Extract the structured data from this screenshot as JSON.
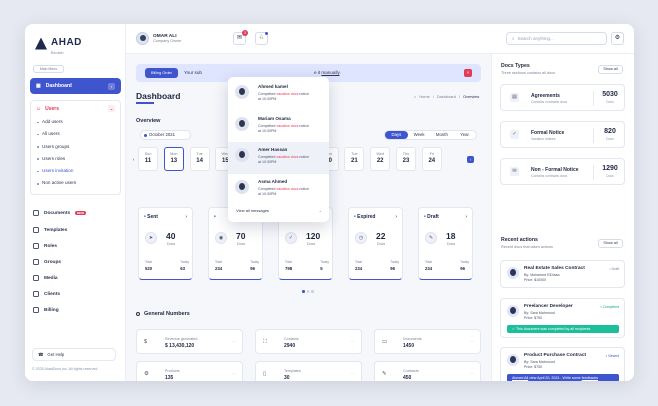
{
  "brand": {
    "name": "AHAD",
    "tagline": "Broker"
  },
  "sidebar": {
    "menu_label": "Main Menu",
    "dashboard": "Dashboard",
    "users": {
      "label": "Users",
      "items": [
        "Add users",
        "All users",
        "Users groups",
        "Users roles",
        "Users invitation",
        "Non active users"
      ]
    },
    "items": [
      {
        "label": "Documents",
        "badge": "NEW"
      },
      {
        "label": "Templates"
      },
      {
        "label": "Roles"
      },
      {
        "label": "Groups"
      },
      {
        "label": "Media"
      },
      {
        "label": "Clients"
      },
      {
        "label": "Billing"
      }
    ],
    "help": "Get Help",
    "copyright": "© 2025 AhadDocs Inc. All rights reserved."
  },
  "topbar": {
    "user_name": "OMAR ALI",
    "user_role": "Company Owner",
    "mail_badge": "3",
    "search_placeholder": "Search anything..."
  },
  "banner": {
    "button": "Billing Order",
    "text_left": "Your sub",
    "text_right": "e it ",
    "link": "manually",
    "tail": ".",
    "close": "×"
  },
  "page": {
    "title": "Dashboard",
    "breadcrumb": [
      "Home",
      "/",
      "Dashboard",
      "/",
      "Overview"
    ],
    "overview_label": "Overview"
  },
  "date_pill": "October 2021",
  "periods": [
    "Days",
    "Week",
    "Month",
    "Year"
  ],
  "days": [
    {
      "name": "Sun",
      "num": "11"
    },
    {
      "name": "Mon",
      "num": "13"
    },
    {
      "name": "Tue",
      "num": "14"
    },
    {
      "name": "Wed",
      "num": "15"
    },
    {
      "name": "Thu",
      "num": "16"
    },
    {
      "name": "Fri",
      "num": "17"
    },
    {
      "name": "Sat",
      "num": "18"
    },
    {
      "name": "Mon",
      "num": "20"
    },
    {
      "name": "Tue",
      "num": "21"
    },
    {
      "name": "Wed",
      "num": "22"
    },
    {
      "name": "Thu",
      "num": "23"
    },
    {
      "name": "Fri",
      "num": "24"
    }
  ],
  "status_cards": [
    {
      "label": "Sent",
      "value": "40",
      "unit": "Docs",
      "total": "520",
      "today": "63",
      "icon": "send-icon"
    },
    {
      "label": "",
      "value": "70",
      "unit": "Docs",
      "total": "234",
      "today": "96",
      "icon": "eye-icon"
    },
    {
      "label": "leted",
      "value": "120",
      "unit": "Docs",
      "total": "798",
      "today": "5",
      "icon": "check-icon"
    },
    {
      "label": "Expired",
      "value": "22",
      "unit": "Docs",
      "total": "234",
      "today": "96",
      "icon": "clock-icon"
    },
    {
      "label": "Draft",
      "value": "18",
      "unit": "Docs",
      "total": "234",
      "today": "96",
      "icon": "edit-icon"
    }
  ],
  "stat_labels": {
    "total": "Total",
    "today": "Today"
  },
  "general_numbers": {
    "title": "General Numbers",
    "items": [
      {
        "label": "Revenue generated",
        "value": "$ 13,430,120",
        "icon": "dollar-icon"
      },
      {
        "label": "Contacts",
        "value": "2940",
        "icon": "contacts-icon"
      },
      {
        "label": "Documents",
        "value": "1450",
        "icon": "document-icon"
      },
      {
        "label": "Products",
        "value": "135",
        "icon": "product-icon"
      },
      {
        "label": "Templates",
        "value": "30",
        "icon": "template-icon"
      },
      {
        "label": "Contracts",
        "value": "450",
        "icon": "contract-icon"
      }
    ]
  },
  "notifications": {
    "items": [
      {
        "name": "Ahmed kamel",
        "msg_pre": "Completed ",
        "msg_hl": "vacation docs",
        "msg_post": " notice",
        "time": "at 10:30PM"
      },
      {
        "name": "Mariam Osama",
        "msg_pre": "Completed ",
        "msg_hl": "vacation docs",
        "msg_post": " notice",
        "time": "at 10:30PM"
      },
      {
        "name": "Amer Hassan",
        "msg_pre": "Completed ",
        "msg_hl": "vacation docs",
        "msg_post": " notice",
        "time": "at 10:30PM"
      },
      {
        "name": "Asma Ahmed",
        "msg_pre": "Completed ",
        "msg_hl": "vacation docs",
        "msg_post": " notice",
        "time": "at 10:30PM"
      }
    ],
    "footer": "View all messages"
  },
  "docs_types": {
    "title": "Docs Types",
    "subtitle": "Three sections contains all docs",
    "show_all": "Show all",
    "items": [
      {
        "name": "Agreements",
        "desc": "Contains contracts docs",
        "value": "5030",
        "unit": "Docs"
      },
      {
        "name": "Formal Notice",
        "desc": "Vacation notices",
        "value": "820",
        "unit": "Docs"
      },
      {
        "name": "Non - Formal Notice",
        "desc": "Contains contracts docs",
        "value": "1290",
        "unit": "Docs"
      }
    ]
  },
  "recent_actions": {
    "title": "Recent actions",
    "subtitle": "Recent docs that taken actions",
    "show_all": "Show all",
    "items": [
      {
        "title": "Real Estate Sales Contract",
        "by": "By: Mohamed ElDiasa",
        "price": "Price: $10000",
        "status": "Draft"
      },
      {
        "title": "Freelancer Developer",
        "by": "By: Sara Mahmoud",
        "price": "Price: $750",
        "status": "Completed",
        "note": "This document was completed by all recipients"
      },
      {
        "title": "Product Purchase Contract",
        "by": "By: Sara Mahmoud",
        "price": "Price: $750",
        "status": "Viewed",
        "note_pre": "Ahmed Ali",
        "note_mid": " view April 20, 2024 - Write some ",
        "note_link": "feedbacks"
      }
    ]
  },
  "colors": {
    "accent": "#3f55cd",
    "danger": "#e23b57",
    "success": "#1cbf9a"
  }
}
